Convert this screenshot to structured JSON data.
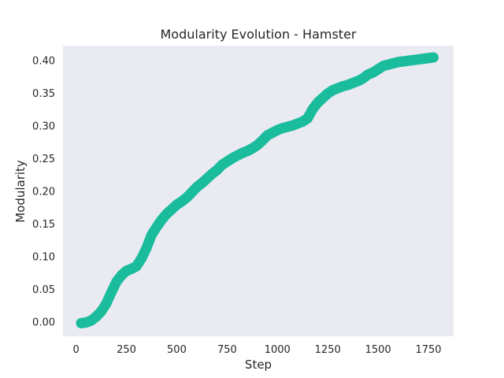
{
  "chart_data": {
    "type": "scatter",
    "title": "Modularity Evolution - Hamster",
    "xlabel": "Step",
    "ylabel": "Modularity",
    "xlim": [
      -65,
      1875
    ],
    "ylim": [
      -0.022,
      0.422
    ],
    "xticks": [
      0,
      250,
      500,
      750,
      1000,
      1250,
      1500,
      1750
    ],
    "yticks": [
      0.0,
      0.05,
      0.1,
      0.15,
      0.2,
      0.25,
      0.3,
      0.35,
      0.4
    ],
    "grid": false,
    "colors": {
      "marker": "#1abc9c",
      "plot_bg": "#eaeaf2"
    },
    "series": [
      {
        "x": [
          25,
          50,
          75,
          100,
          125,
          150,
          175,
          200,
          225,
          250,
          275,
          300,
          325,
          350,
          375,
          400,
          425,
          450,
          475,
          500,
          525,
          550,
          575,
          600,
          625,
          650,
          675,
          700,
          725,
          750,
          775,
          800,
          825,
          850,
          875,
          900,
          925,
          950,
          975,
          1000,
          1025,
          1050,
          1075,
          1100,
          1125,
          1150,
          1175,
          1200,
          1225,
          1250,
          1275,
          1300,
          1325,
          1350,
          1375,
          1400,
          1425,
          1450,
          1475,
          1500,
          1525,
          1550,
          1575,
          1600,
          1625,
          1650,
          1675,
          1700,
          1725,
          1750,
          1775
        ],
        "y": [
          -0.002,
          -0.001,
          0.002,
          0.008,
          0.016,
          0.028,
          0.045,
          0.061,
          0.071,
          0.078,
          0.081,
          0.085,
          0.097,
          0.113,
          0.133,
          0.145,
          0.156,
          0.165,
          0.172,
          0.179,
          0.184,
          0.19,
          0.198,
          0.206,
          0.212,
          0.219,
          0.226,
          0.232,
          0.24,
          0.245,
          0.25,
          0.254,
          0.258,
          0.261,
          0.265,
          0.27,
          0.277,
          0.285,
          0.289,
          0.293,
          0.296,
          0.298,
          0.3,
          0.303,
          0.306,
          0.311,
          0.325,
          0.335,
          0.342,
          0.349,
          0.354,
          0.357,
          0.36,
          0.362,
          0.365,
          0.368,
          0.372,
          0.378,
          0.381,
          0.386,
          0.391,
          0.393,
          0.395,
          0.397,
          0.398,
          0.399,
          0.4,
          0.401,
          0.402,
          0.403,
          0.404
        ]
      }
    ]
  }
}
